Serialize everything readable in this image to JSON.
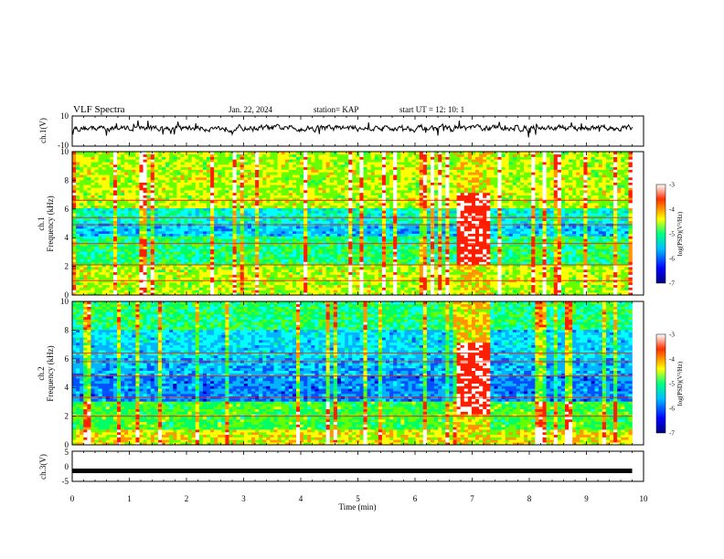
{
  "header": {
    "title": "VLF Spectra",
    "date": "Jan. 22, 2024",
    "station": "station= KAP",
    "start": "start  UT =   12: 10: 1"
  },
  "chart_data": [
    {
      "type": "line",
      "panel": "ch1-voltage",
      "ylabel": "ch.1(V)",
      "ylim": [
        -10,
        10
      ],
      "yticks": [
        "10",
        "-10"
      ],
      "xlim": [
        0,
        10
      ],
      "style": "noisy trace around +2 V, amplitude roughly ±4 V",
      "color": "#000000"
    },
    {
      "type": "heatmap",
      "panel": "ch1-spectrogram",
      "ylabel_top": "ch.1",
      "ylabel": "Frequency (kHz)",
      "ylim": [
        0,
        10
      ],
      "yticks": [
        "0",
        "2",
        "4",
        "6",
        "8",
        "10"
      ],
      "xlim": [
        0,
        10
      ],
      "data_end_min": 9.8,
      "broadband_interval_min": [
        6.7,
        7.3
      ],
      "colorbar": {
        "label": "log(PSD)(V²/Hz)",
        "range": [
          -7,
          -3
        ],
        "ticks": [
          "-3",
          "-4",
          "-5",
          "-6",
          "-7"
        ],
        "colors": [
          "#000080",
          "#0000ff",
          "#00c0ff",
          "#00ff80",
          "#ffff00",
          "#ff4000",
          "#ffffff"
        ]
      }
    },
    {
      "type": "heatmap",
      "panel": "ch2-spectrogram",
      "ylabel_top": "ch.2",
      "ylabel": "Frequency (kHz)",
      "ylim": [
        0,
        10
      ],
      "yticks": [
        "0",
        "2",
        "4",
        "6",
        "8",
        "10"
      ],
      "xlim": [
        0,
        10
      ],
      "data_end_min": 9.8,
      "broadband_interval_min": [
        6.7,
        7.3
      ],
      "colorbar": {
        "label": "log(PSD)(V²/Hz)",
        "range": [
          -7,
          -3
        ],
        "ticks": [
          "-3",
          "-4",
          "-5",
          "-6",
          "-7"
        ]
      }
    },
    {
      "type": "line",
      "panel": "ch3-voltage",
      "ylabel": "ch.3(V)",
      "ylim": [
        -5,
        5
      ],
      "yticks": [
        "5",
        "0",
        "-5"
      ],
      "xlim": [
        0,
        10
      ],
      "xlabel": "Time (min)",
      "xticks": [
        "0",
        "1",
        "2",
        "3",
        "4",
        "5",
        "6",
        "7",
        "8",
        "9",
        "10"
      ],
      "style": "flat thick trace near -1.5 V",
      "color": "#000000"
    }
  ]
}
